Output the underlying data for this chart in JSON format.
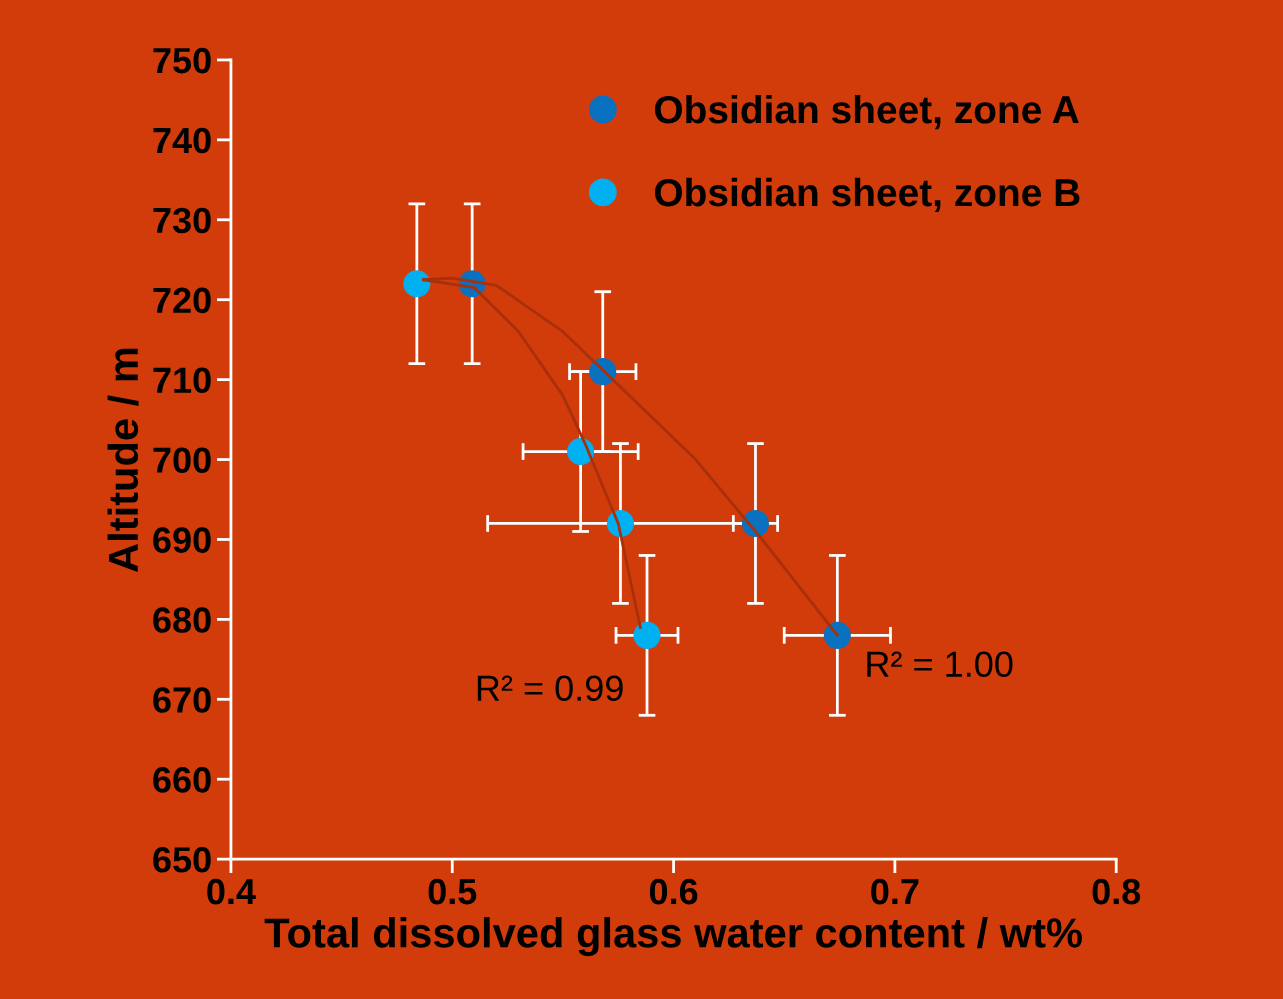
{
  "chart_data": {
    "type": "scatter",
    "xlabel": "Total dissolved glass water content / wt%",
    "ylabel": "Altitude / m",
    "xlim": [
      0.4,
      0.8
    ],
    "ylim": [
      650,
      750
    ],
    "xticks": [
      0.4,
      0.5,
      0.6,
      0.7,
      0.8
    ],
    "yticks": [
      650,
      660,
      670,
      680,
      690,
      700,
      710,
      720,
      730,
      740,
      750
    ],
    "grid": false,
    "legend": "top right",
    "marker": "circle",
    "series": [
      {
        "name": "Obsidian sheet, zone A",
        "color": "#0a70c0",
        "x": [
          0.509,
          0.568,
          0.637,
          0.674
        ],
        "values": [
          722,
          711,
          692,
          678
        ],
        "errors": [
          10,
          10,
          10,
          10
        ],
        "xerrors": [
          null,
          0.015,
          0.01,
          0.024
        ]
      },
      {
        "name": "Obsidian sheet, zone B",
        "color": "#00b0f0",
        "x": [
          0.484,
          0.558,
          0.576,
          0.588
        ],
        "values": [
          722,
          701,
          692,
          678
        ],
        "errors": [
          10,
          10,
          10,
          10
        ],
        "xerrors": [
          null,
          0.026,
          0.06,
          0.014
        ]
      },
      {
        "type": "line",
        "color": "#a8300a",
        "marker": "none",
        "x": [
          0.487,
          0.5,
          0.52,
          0.55,
          0.58,
          0.61,
          0.64,
          0.674
        ],
        "values": [
          722.5,
          722.7,
          721.8,
          716,
          708,
          700,
          690,
          678
        ]
      },
      {
        "type": "line",
        "color": "#a8300a",
        "marker": "none",
        "x": [
          0.487,
          0.51,
          0.53,
          0.55,
          0.56,
          0.575,
          0.585
        ],
        "values": [
          722.5,
          721.5,
          716,
          708,
          702,
          692,
          679
        ]
      }
    ],
    "annotations": [
      "R² = 0.99",
      "R² = 1.00"
    ]
  }
}
